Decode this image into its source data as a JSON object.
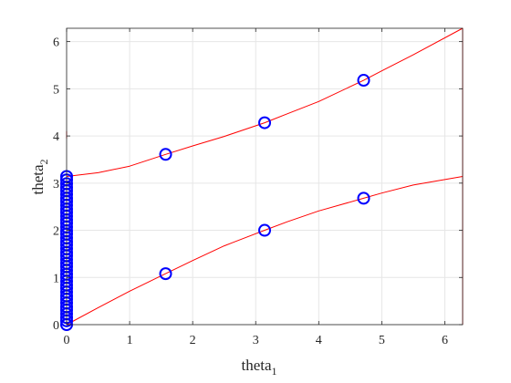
{
  "chart_data": {
    "type": "line",
    "title": "",
    "xlabel": {
      "base": "theta",
      "sub": "1"
    },
    "ylabel": {
      "base": "theta",
      "sub": "2"
    },
    "xlim": [
      0,
      6.283
    ],
    "ylim": [
      0,
      6.283
    ],
    "xticks": [
      0,
      1,
      2,
      3,
      4,
      5,
      6
    ],
    "yticks": [
      0,
      1,
      2,
      3,
      4,
      5,
      6
    ],
    "grid": true,
    "colors": {
      "curve": "#ff0000",
      "marker": "#0000ff",
      "axis": "#262626",
      "grid": "#e6e6e6"
    },
    "series": [
      {
        "kind": "curve",
        "x": [
          0,
          0.5,
          1.0,
          1.5708,
          2.0,
          2.5,
          3.1416,
          3.5,
          4.0,
          4.7124,
          5.0,
          5.5,
          6.283
        ],
        "y": [
          0.0,
          0.36,
          0.71,
          1.08,
          1.36,
          1.67,
          2.0,
          2.18,
          2.41,
          2.68,
          2.79,
          2.96,
          3.1416
        ]
      },
      {
        "kind": "curve",
        "x": [
          0,
          0.5,
          1.0,
          1.5708,
          2.0,
          2.5,
          3.1416,
          3.5,
          4.0,
          4.7124,
          5.0,
          5.5,
          6.283
        ],
        "y": [
          3.1416,
          3.22,
          3.36,
          3.61,
          3.79,
          3.99,
          4.28,
          4.47,
          4.73,
          5.18,
          5.38,
          5.72,
          6.283
        ]
      },
      {
        "kind": "boundary",
        "x": [
          6.283,
          6.283
        ],
        "y": [
          0.0,
          6.283
        ]
      },
      {
        "kind": "boundary",
        "x": [
          0.0,
          0.0
        ],
        "y": [
          3.95,
          4.1
        ]
      },
      {
        "kind": "markers",
        "x": [
          1.5708,
          3.1416,
          4.7124,
          1.5708,
          3.1416,
          4.7124
        ],
        "y": [
          1.08,
          2.0,
          2.68,
          3.61,
          4.28,
          5.18
        ]
      },
      {
        "kind": "markers",
        "x": [
          0,
          0,
          0,
          0,
          0,
          0,
          0,
          0,
          0,
          0,
          0,
          0,
          0,
          0,
          0,
          0,
          0,
          0,
          0,
          0,
          0,
          0,
          0,
          0,
          0,
          0,
          0,
          0,
          0,
          0,
          0,
          0,
          0,
          0,
          0,
          0,
          0,
          0,
          0,
          0,
          0,
          0
        ],
        "y": [
          0.0,
          0.08,
          0.15,
          0.23,
          0.31,
          0.38,
          0.46,
          0.54,
          0.61,
          0.69,
          0.77,
          0.84,
          0.92,
          1.0,
          1.07,
          1.15,
          1.23,
          1.3,
          1.38,
          1.46,
          1.53,
          1.61,
          1.69,
          1.76,
          1.84,
          1.92,
          1.99,
          2.07,
          2.15,
          2.22,
          2.3,
          2.38,
          2.45,
          2.53,
          2.61,
          2.68,
          2.76,
          2.84,
          2.91,
          2.99,
          3.07,
          3.1416
        ]
      }
    ]
  }
}
